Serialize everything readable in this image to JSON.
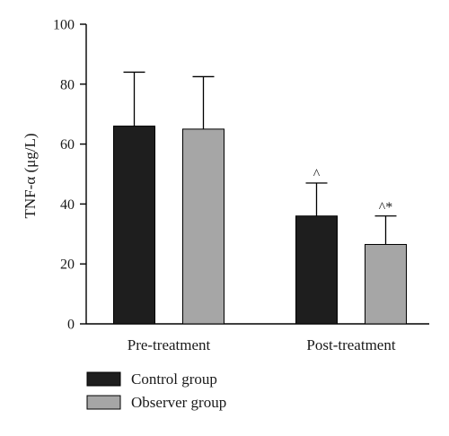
{
  "chart_data": {
    "type": "bar",
    "categories": [
      "Pre-treatment",
      "Post-treatment"
    ],
    "ylabel": "TNF-α (μg/L)",
    "ylim": [
      0,
      100
    ],
    "yticks": [
      0,
      20,
      40,
      60,
      80,
      100
    ],
    "series": [
      {
        "name": "Control group",
        "values": [
          66,
          36
        ],
        "errors": [
          18,
          11
        ],
        "color": "#1e1e1e"
      },
      {
        "name": "Observer group",
        "values": [
          65,
          26.5
        ],
        "errors": [
          17.5,
          9.5
        ],
        "color": "#a6a6a6"
      }
    ],
    "annotations": [
      {
        "category": 1,
        "series": 0,
        "text": "^"
      },
      {
        "category": 1,
        "series": 1,
        "text": "^*"
      }
    ],
    "legend": "bottom-left",
    "grid": false
  }
}
